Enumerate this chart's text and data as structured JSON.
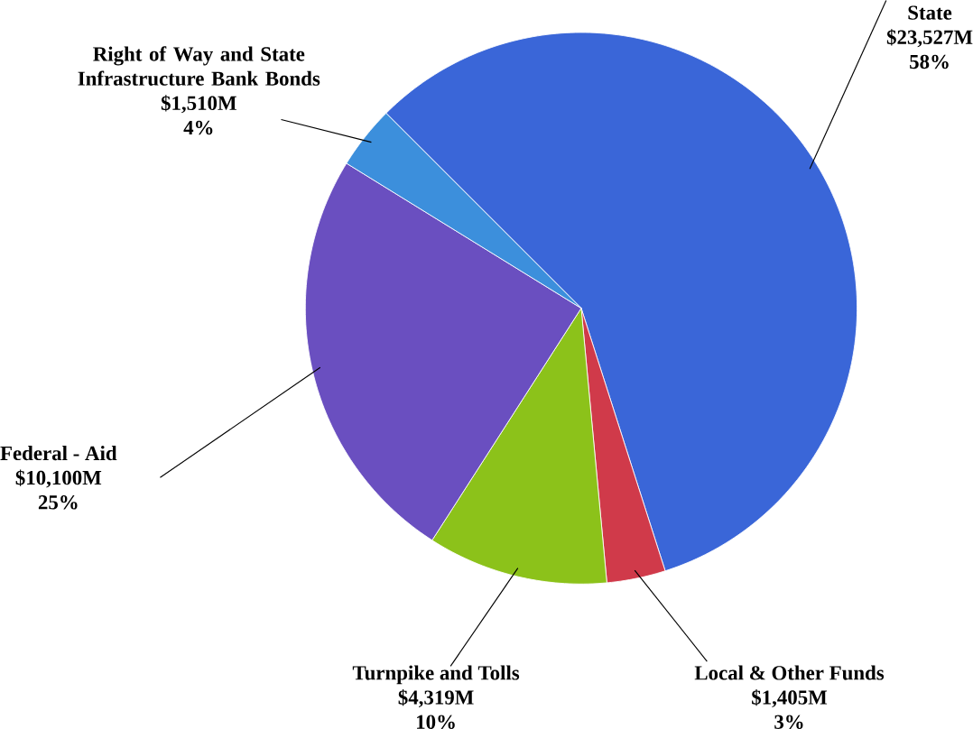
{
  "chart_data": {
    "type": "pie",
    "categories": [
      "State",
      "Local & Other Funds",
      "Turnpike and Tolls",
      "Federal - Aid",
      "Right of Way and State Infrastructure Bank Bonds"
    ],
    "values": [
      23527,
      1405,
      4319,
      10100,
      1510
    ],
    "value_labels": [
      "$23,527M",
      "$1,405M",
      "$4,319M",
      "$10,100M",
      "$1,510M"
    ],
    "annotations": [
      "58%",
      "3%",
      "10%",
      "25%",
      "4%"
    ],
    "colors": [
      "#3a66d8",
      "#d03a4a",
      "#8cc21a",
      "#6a4fc0",
      "#3c8fdc"
    ]
  }
}
